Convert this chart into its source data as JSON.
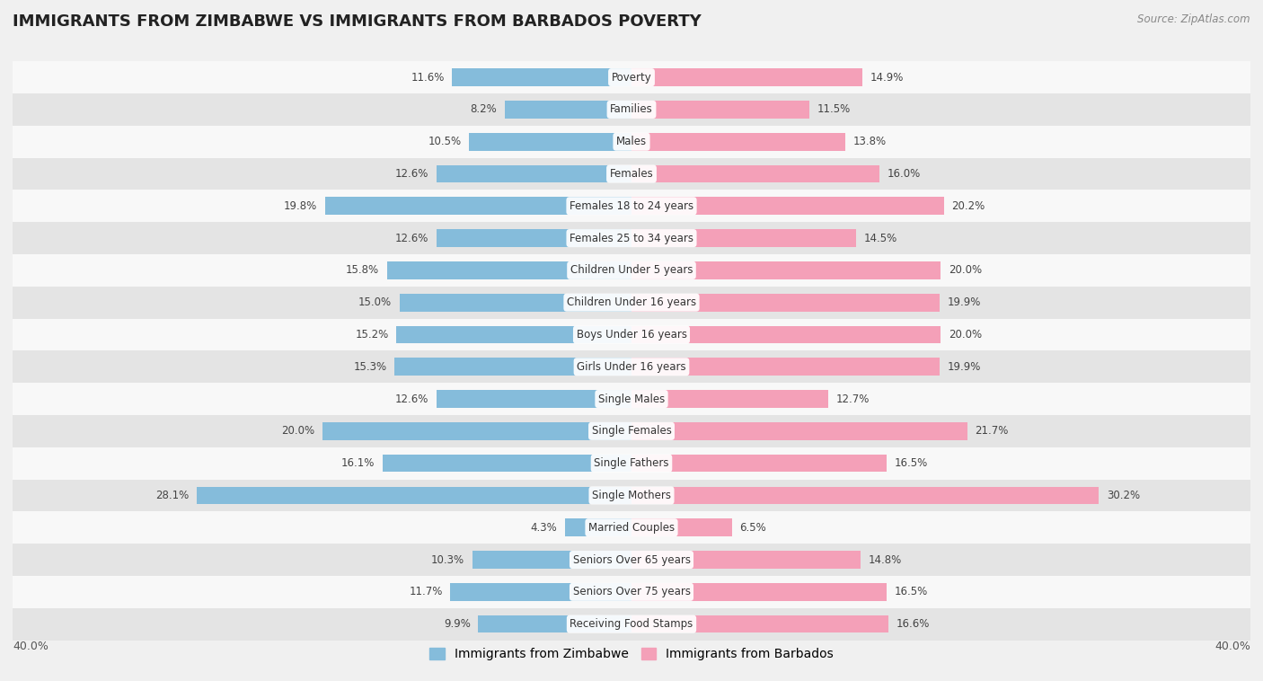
{
  "title": "IMMIGRANTS FROM ZIMBABWE VS IMMIGRANTS FROM BARBADOS POVERTY",
  "source": "Source: ZipAtlas.com",
  "categories": [
    "Poverty",
    "Families",
    "Males",
    "Females",
    "Females 18 to 24 years",
    "Females 25 to 34 years",
    "Children Under 5 years",
    "Children Under 16 years",
    "Boys Under 16 years",
    "Girls Under 16 years",
    "Single Males",
    "Single Females",
    "Single Fathers",
    "Single Mothers",
    "Married Couples",
    "Seniors Over 65 years",
    "Seniors Over 75 years",
    "Receiving Food Stamps"
  ],
  "zimbabwe_values": [
    11.6,
    8.2,
    10.5,
    12.6,
    19.8,
    12.6,
    15.8,
    15.0,
    15.2,
    15.3,
    12.6,
    20.0,
    16.1,
    28.1,
    4.3,
    10.3,
    11.7,
    9.9
  ],
  "barbados_values": [
    14.9,
    11.5,
    13.8,
    16.0,
    20.2,
    14.5,
    20.0,
    19.9,
    20.0,
    19.9,
    12.7,
    21.7,
    16.5,
    30.2,
    6.5,
    14.8,
    16.5,
    16.6
  ],
  "zimbabwe_color": "#85bcdb",
  "barbados_color": "#f4a0b8",
  "bar_height": 0.55,
  "xlim": 40.0,
  "background_color": "#f0f0f0",
  "row_bg_light": "#f8f8f8",
  "row_bg_dark": "#e4e4e4",
  "legend_zimbabwe": "Immigrants from Zimbabwe",
  "legend_barbados": "Immigrants from Barbados",
  "label_fontsize": 8.5,
  "cat_fontsize": 8.5,
  "title_fontsize": 13
}
